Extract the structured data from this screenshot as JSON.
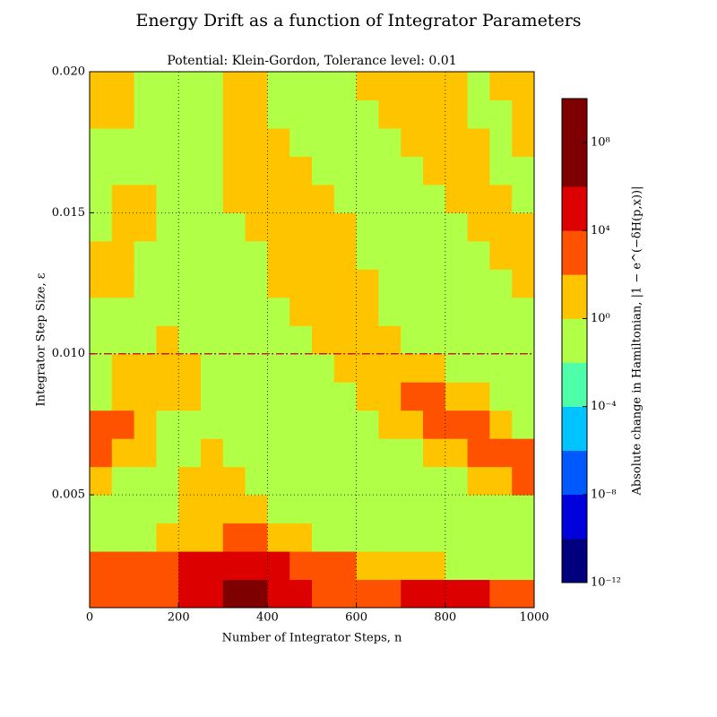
{
  "chart_data": {
    "type": "contour",
    "title": "Energy Drift as a function of Integrator Parameters",
    "subtitle": "Potential: Klein-Gordon, Tolerance level: 0.01",
    "xlabel": "Number of Integrator Steps, n",
    "ylabel": "Integrator Step Size, ε",
    "xlim": [
      0,
      1000
    ],
    "ylim": [
      0.001,
      0.02
    ],
    "xticks": [
      0,
      200,
      400,
      600,
      800,
      1000
    ],
    "yticks": [
      0.005,
      {
        "value": 0.01,
        "label": "0.010"
      },
      0.015,
      {
        "value": 0.02,
        "label": "0.020"
      }
    ],
    "grid": true,
    "hline": 0.01,
    "hline_color": "#c0002a",
    "x": [
      25,
      75,
      125,
      175,
      225,
      275,
      325,
      375,
      425,
      475,
      525,
      575,
      625,
      675,
      725,
      775,
      825,
      875,
      925,
      975
    ],
    "y": [
      0.0015,
      0.0025,
      0.0035,
      0.0045,
      0.0055,
      0.0065,
      0.0075,
      0.0085,
      0.0095,
      0.0105,
      0.0115,
      0.0125,
      0.0135,
      0.0145,
      0.0155,
      0.0165,
      0.0175,
      0.0185,
      0.0195
    ],
    "z": [
      [
        1000,
        1000,
        1000,
        1000,
        100000,
        100000,
        100000000,
        100000000,
        100000,
        100000,
        1000,
        1000,
        1000,
        1000,
        100000,
        100000,
        100000,
        100000,
        1000,
        1000
      ],
      [
        1000,
        1000,
        1000,
        1000,
        100000,
        100000,
        100000,
        100000,
        100000,
        1000,
        1000,
        1000,
        10,
        10,
        10,
        10,
        0.1,
        0.1,
        0.1,
        0.1
      ],
      [
        0.1,
        0.1,
        0.1,
        10,
        10,
        10,
        1000,
        1000,
        10,
        10,
        0.1,
        0.1,
        0.1,
        0.1,
        0.1,
        0.1,
        0.1,
        0.1,
        0.1,
        0.1
      ],
      [
        0.1,
        0.1,
        0.1,
        0.1,
        10,
        10,
        10,
        10,
        0.1,
        0.1,
        0.1,
        0.1,
        0.1,
        0.1,
        0.1,
        0.1,
        0.1,
        0.1,
        0.1,
        0.1
      ],
      [
        10,
        0.1,
        0.1,
        0.1,
        10,
        10,
        10,
        0.1,
        0.1,
        0.1,
        0.1,
        0.1,
        0.1,
        0.1,
        0.1,
        0.1,
        0.1,
        10,
        10,
        1000
      ],
      [
        1000,
        10,
        10,
        0.1,
        0.1,
        10,
        0.1,
        0.1,
        0.1,
        0.1,
        0.1,
        0.1,
        0.1,
        0.1,
        0.1,
        10,
        10,
        1000,
        1000,
        1000
      ],
      [
        1000,
        1000,
        10,
        0.1,
        0.1,
        0.1,
        0.1,
        0.1,
        0.1,
        0.1,
        0.1,
        0.1,
        0.1,
        10,
        10,
        1000,
        1000,
        1000,
        10,
        0.1
      ],
      [
        0.1,
        10,
        10,
        10,
        10,
        0.1,
        0.1,
        0.1,
        0.1,
        0.1,
        0.1,
        0.1,
        10,
        10,
        1000,
        1000,
        10,
        10,
        0.1,
        0.1
      ],
      [
        0.1,
        10,
        10,
        10,
        10,
        0.1,
        0.1,
        0.1,
        0.1,
        0.1,
        0.1,
        10,
        10,
        10,
        10,
        10,
        0.1,
        0.1,
        0.1,
        0.1
      ],
      [
        0.1,
        0.1,
        0.1,
        10,
        0.1,
        0.1,
        0.1,
        0.1,
        0.1,
        0.1,
        10,
        10,
        10,
        10,
        0.1,
        0.1,
        0.1,
        0.1,
        0.1,
        0.1
      ],
      [
        0.1,
        0.1,
        0.1,
        0.1,
        0.1,
        0.1,
        0.1,
        0.1,
        0.1,
        10,
        10,
        10,
        10,
        0.1,
        0.1,
        0.1,
        0.1,
        0.1,
        0.1,
        0.1
      ],
      [
        10,
        10,
        0.1,
        0.1,
        0.1,
        0.1,
        0.1,
        0.1,
        10,
        10,
        10,
        10,
        10,
        0.1,
        0.1,
        0.1,
        0.1,
        0.1,
        0.1,
        10
      ],
      [
        10,
        10,
        0.1,
        0.1,
        0.1,
        0.1,
        0.1,
        0.1,
        10,
        10,
        10,
        10,
        0.1,
        0.1,
        0.1,
        0.1,
        0.1,
        0.1,
        10,
        10
      ],
      [
        0.1,
        10,
        10,
        0.1,
        0.1,
        0.1,
        0.1,
        10,
        10,
        10,
        10,
        10,
        0.1,
        0.1,
        0.1,
        0.1,
        0.1,
        10,
        10,
        10
      ],
      [
        0.1,
        10,
        10,
        0.1,
        0.1,
        0.1,
        10,
        10,
        10,
        10,
        10,
        0.1,
        0.1,
        0.1,
        0.1,
        0.1,
        10,
        10,
        10,
        0.1
      ],
      [
        0.1,
        0.1,
        0.1,
        0.1,
        0.1,
        0.1,
        10,
        10,
        10,
        10,
        0.1,
        0.1,
        0.1,
        0.1,
        0.1,
        10,
        10,
        10,
        0.1,
        0.1
      ],
      [
        0.1,
        0.1,
        0.1,
        0.1,
        0.1,
        0.1,
        10,
        10,
        10,
        0.1,
        0.1,
        0.1,
        0.1,
        0.1,
        10,
        10,
        10,
        10,
        0.1,
        10
      ],
      [
        10,
        10,
        0.1,
        0.1,
        0.1,
        0.1,
        10,
        10,
        0.1,
        0.1,
        0.1,
        0.1,
        0.1,
        10,
        10,
        10,
        10,
        0.1,
        0.1,
        10
      ],
      [
        10,
        10,
        0.1,
        0.1,
        0.1,
        0.1,
        10,
        10,
        0.1,
        0.1,
        0.1,
        0.1,
        10,
        10,
        10,
        10,
        10,
        0.1,
        10,
        10
      ]
    ],
    "colorbar": {
      "label": "Absolute change in Hamiltonian, |1 − e^(−δH(p,x))|",
      "log": true,
      "lim": [
        1e-12,
        10000000000.0
      ],
      "levels": [
        1e-12,
        1e-10,
        1e-08,
        1e-06,
        0.0001,
        0.01,
        1,
        100,
        10000,
        1000000,
        10000000000.0
      ],
      "colors": [
        "#00007f",
        "#0000dc",
        "#0058ff",
        "#00c4ff",
        "#4effa9",
        "#b1ff46",
        "#ffc400",
        "#ff5200",
        "#dc0000",
        "#7f0000"
      ],
      "ticks": [
        {
          "value": 1e-12,
          "label": "10⁻¹²"
        },
        {
          "value": 1e-08,
          "label": "10⁻⁸"
        },
        {
          "value": 0.0001,
          "label": "10⁻⁴"
        },
        {
          "value": 1,
          "label": "10⁰"
        },
        {
          "value": 10000,
          "label": "10⁴"
        },
        {
          "value": 100000000,
          "label": "10⁸"
        }
      ]
    }
  }
}
